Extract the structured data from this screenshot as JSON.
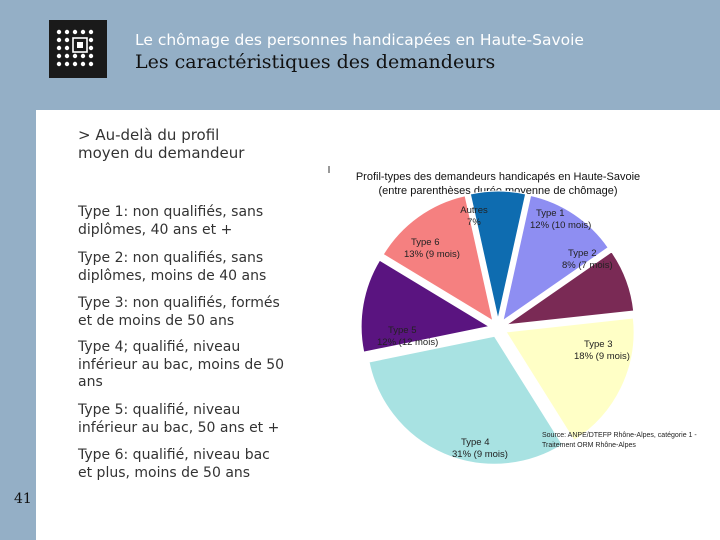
{
  "header": {
    "subtitle": "Le chômage des personnes handicapées en Haute-Savoie",
    "title": "Les caractéristiques des demandeurs"
  },
  "content": {
    "heading_line1": "> Au-delà du profil",
    "heading_line2": "moyen du demandeur",
    "types": [
      {
        "l1": "Type 1: non qualifiés, sans",
        "l2": "diplômes, 40 ans et +",
        "l3": ""
      },
      {
        "l1": "Type 2: non qualifiés, sans",
        "l2": "diplômes, moins de 40 ans",
        "l3": ""
      },
      {
        "l1": "Type 3: non qualifiés, formés",
        "l2": "et de moins de 50 ans",
        "l3": ""
      },
      {
        "l1": "Type 4; qualifié, niveau",
        "l2": "inférieur au bac, moins de 50",
        "l3": "ans"
      },
      {
        "l1": "Type 5: qualifié, niveau",
        "l2": "inférieur au bac, 50 ans et +",
        "l3": ""
      },
      {
        "l1": "Type 6: qualifié, niveau bac",
        "l2": "et plus, moins de 50 ans",
        "l3": ""
      }
    ]
  },
  "page_number": "41",
  "chart_data": {
    "type": "pie",
    "title_line1": "Profil-types des demandeurs handicapés en Haute-Savoie",
    "title_line2": "(entre parenthèses durée moyenne de chômage)",
    "source_line1": "Source: ANPE/DTEFP Rhône-Alpes, catégorie 1 -",
    "source_line2": "Traitement ORM Rhône-Alpes",
    "slices": [
      {
        "name": "Type 1",
        "value": 12,
        "label": "12% (10 mois)",
        "color": "#8e8ef2"
      },
      {
        "name": "Type 2",
        "value": 8,
        "label": "8% (7 mois)",
        "color": "#7a2a55"
      },
      {
        "name": "Type 3",
        "value": 18,
        "label": "18% (9 mois)",
        "color": "#ffffc6"
      },
      {
        "name": "Type 4",
        "value": 31,
        "label": "31% (9 mois)",
        "color": "#a8e2e2"
      },
      {
        "name": "Type 5",
        "value": 12,
        "label": "12% (12 mois)",
        "color": "#5a1480"
      },
      {
        "name": "Type 6",
        "value": 13,
        "label": "13% (9 mois)",
        "color": "#f58080"
      },
      {
        "name": "Autres",
        "value": 7,
        "label": "7%",
        "color": "#0e6cb0"
      }
    ]
  }
}
